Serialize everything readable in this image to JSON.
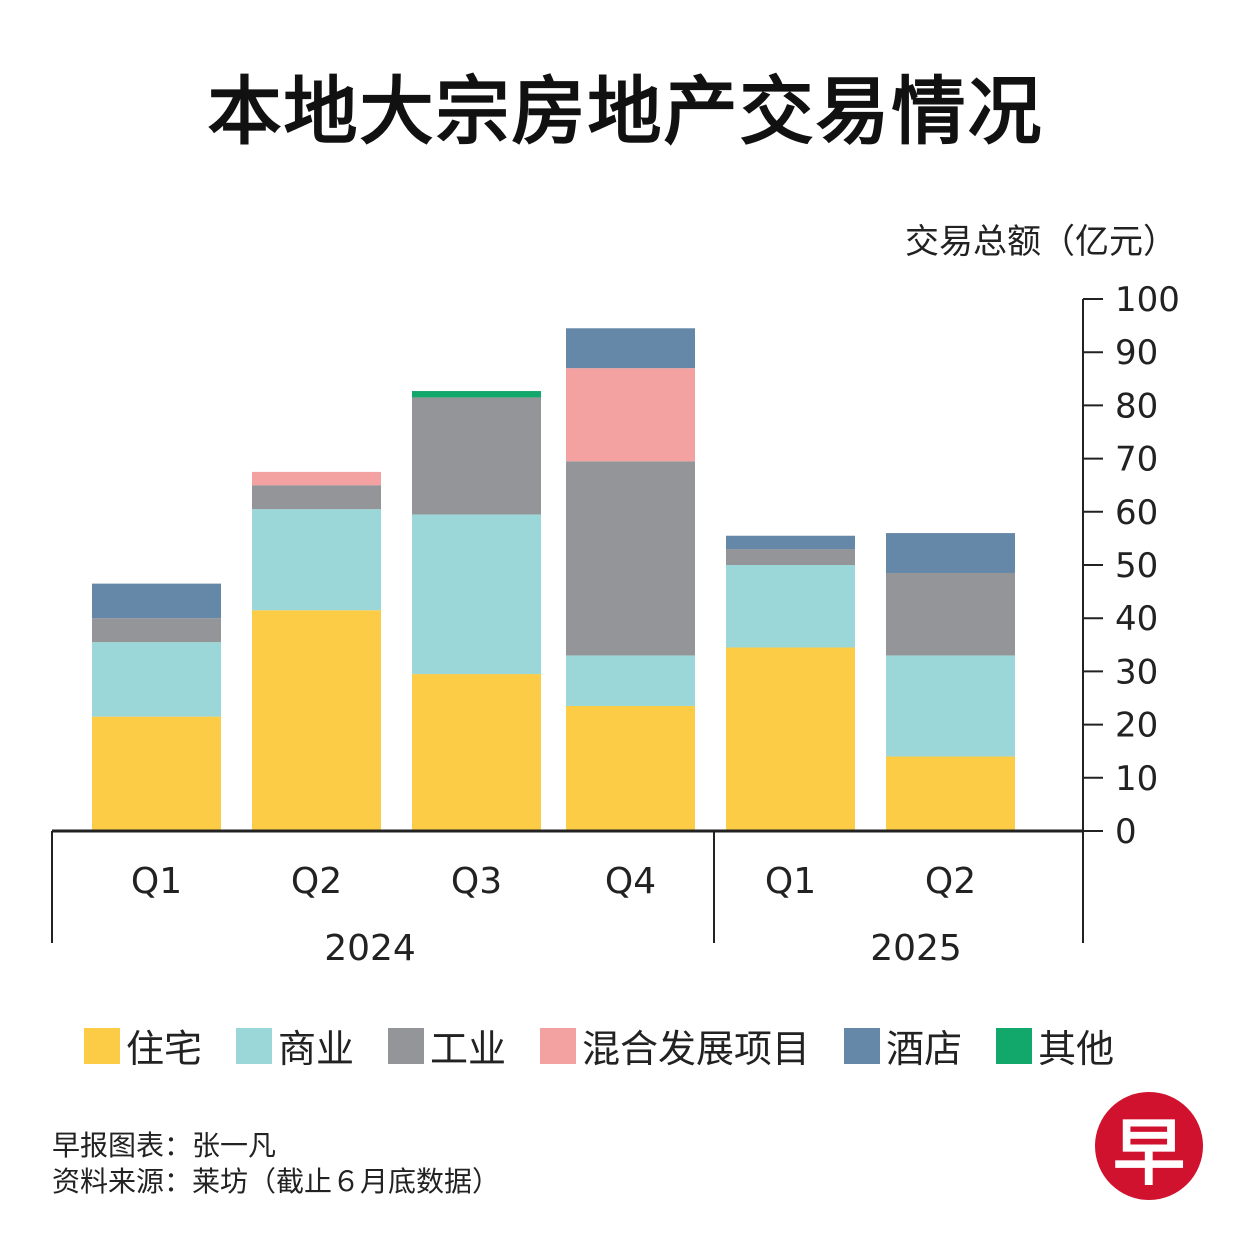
{
  "title": "本地大宗房地产交易情况",
  "chart_data": {
    "type": "bar",
    "stacked": true,
    "title": "本地大宗房地产交易情况",
    "ylabel": "交易总额（亿元）",
    "xlabel": "",
    "ylim": [
      0,
      100
    ],
    "yticks": [
      0,
      10,
      20,
      30,
      40,
      50,
      60,
      70,
      80,
      90,
      100
    ],
    "categories": [
      "Q1",
      "Q2",
      "Q3",
      "Q4",
      "Q1",
      "Q2"
    ],
    "groups": [
      {
        "label": "2024",
        "count": 4
      },
      {
        "label": "2025",
        "count": 2
      }
    ],
    "series": [
      {
        "name": "住宅",
        "color": "#fccc47",
        "values": [
          21.5,
          41.5,
          29.5,
          23.5,
          34.5,
          14.0
        ]
      },
      {
        "name": "商业",
        "color": "#9bd7d8",
        "values": [
          14.0,
          19.0,
          30.0,
          9.5,
          15.5,
          19.0
        ]
      },
      {
        "name": "工业",
        "color": "#939598",
        "values": [
          4.5,
          4.5,
          22.0,
          36.5,
          3.0,
          15.5
        ]
      },
      {
        "name": "混合发展项目",
        "color": "#f4a1a2",
        "values": [
          0,
          2.5,
          0,
          17.5,
          0,
          0
        ]
      },
      {
        "name": "酒店",
        "color": "#6688a8",
        "values": [
          6.5,
          0,
          0,
          7.5,
          2.5,
          7.5
        ]
      },
      {
        "name": "其他",
        "color": "#12a86b",
        "values": [
          0,
          0,
          1.2,
          0,
          0,
          0
        ]
      }
    ],
    "legend_position": "bottom"
  },
  "footer": {
    "line1": "早报图表：张一凡",
    "line2": "资料来源：莱坊（截止６月底数据）"
  },
  "logo_text": "早"
}
